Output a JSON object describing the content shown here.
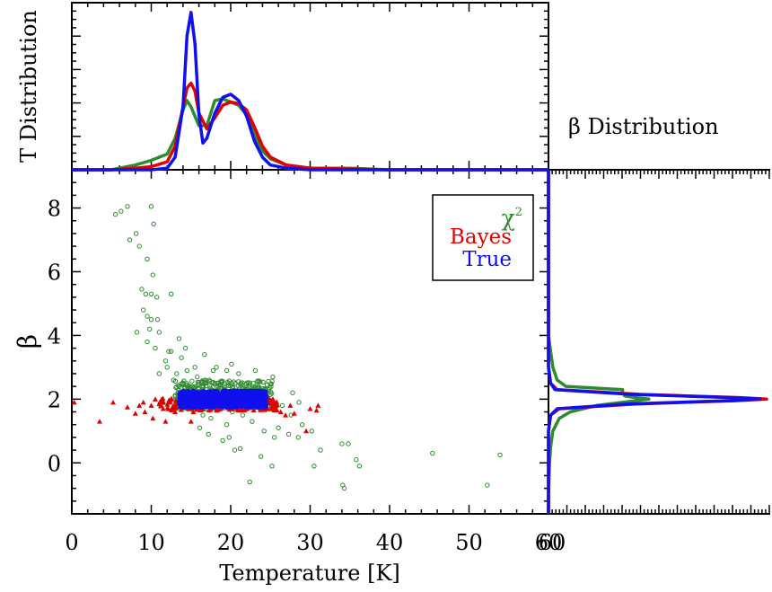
{
  "chart_data": [
    {
      "type": "line",
      "panel": "top",
      "ylabel": "T Distribution",
      "xlim": [
        0,
        60
      ],
      "ylim": [
        0,
        1.05
      ],
      "series": [
        {
          "name": "χ²",
          "color": "#2e8b2e",
          "x": [
            0,
            5,
            8,
            10,
            12,
            13,
            14,
            14.5,
            15,
            16,
            17,
            18,
            19,
            20,
            21,
            22,
            23,
            24,
            25,
            27,
            30,
            35,
            40,
            60
          ],
          "y": [
            0,
            0,
            0.03,
            0.06,
            0.1,
            0.2,
            0.38,
            0.44,
            0.4,
            0.28,
            0.28,
            0.44,
            0.45,
            0.43,
            0.41,
            0.35,
            0.22,
            0.12,
            0.07,
            0.03,
            0.01,
            0.01,
            0,
            0
          ]
        },
        {
          "name": "Bayes",
          "color": "#e00000",
          "x": [
            0,
            5,
            8,
            10,
            12,
            13,
            14,
            14.5,
            15,
            15.5,
            16,
            17,
            18,
            19,
            20,
            21,
            22,
            23,
            24,
            25,
            27,
            30,
            35,
            40,
            60
          ],
          "y": [
            0,
            0,
            0.01,
            0.02,
            0.05,
            0.15,
            0.4,
            0.52,
            0.55,
            0.5,
            0.36,
            0.26,
            0.33,
            0.41,
            0.43,
            0.42,
            0.38,
            0.27,
            0.15,
            0.08,
            0.03,
            0.01,
            0.005,
            0,
            0
          ]
        },
        {
          "name": "True",
          "color": "#1010ee",
          "x": [
            0,
            5,
            10,
            12,
            13,
            14,
            14.5,
            15,
            15.5,
            16,
            16.5,
            17,
            18,
            19,
            20,
            21,
            22,
            23,
            24,
            25,
            27,
            30,
            60
          ],
          "y": [
            0,
            0,
            0,
            0.01,
            0.08,
            0.4,
            0.85,
            1,
            0.8,
            0.35,
            0.17,
            0.2,
            0.36,
            0.46,
            0.48,
            0.44,
            0.34,
            0.18,
            0.08,
            0.03,
            0.01,
            0,
            0
          ]
        }
      ]
    },
    {
      "type": "scatter",
      "panel": "main",
      "xlabel": "Temperature [K]",
      "ylabel": "β",
      "xlim": [
        0,
        60
      ],
      "ylim": [
        -1.6,
        9.2
      ],
      "xticks": [
        0,
        10,
        20,
        30,
        40,
        50,
        60
      ],
      "yticks": [
        0,
        2,
        4,
        6,
        8
      ],
      "legend": "top-right",
      "series": [
        {
          "name": "χ²",
          "color": "#2e8b2e",
          "marker": "circle",
          "points": [
            [
              5.5,
              7.8
            ],
            [
              6.2,
              7.9
            ],
            [
              7,
              8.05
            ],
            [
              8.1,
              7.2
            ],
            [
              10,
              8.05
            ],
            [
              10.3,
              7.5
            ],
            [
              7.3,
              7
            ],
            [
              8.5,
              6.8
            ],
            [
              9.5,
              6.4
            ],
            [
              10.2,
              5.9
            ],
            [
              12.5,
              5.3
            ],
            [
              8.8,
              5.45
            ],
            [
              9.3,
              5.3
            ],
            [
              10,
              5.3
            ],
            [
              10.7,
              5.2
            ],
            [
              9,
              4.8
            ],
            [
              9.5,
              4.6
            ],
            [
              10,
              4.5
            ],
            [
              10.8,
              4.5
            ],
            [
              8.2,
              4.1
            ],
            [
              9.8,
              4.2
            ],
            [
              11,
              4.1
            ],
            [
              12.5,
              3.5
            ],
            [
              13.5,
              3.9
            ],
            [
              9.5,
              3.8
            ],
            [
              10.5,
              3.6
            ],
            [
              11.8,
              3.2
            ],
            [
              12,
              3.0
            ],
            [
              13.8,
              3.3
            ],
            [
              14.5,
              2.9
            ],
            [
              15.5,
              3.0
            ],
            [
              16.8,
              2.6
            ],
            [
              11,
              2.8
            ],
            [
              12.8,
              2.6
            ],
            [
              13.6,
              2.1
            ],
            [
              14.8,
              1.7
            ],
            [
              16.5,
              1.5
            ],
            [
              17.5,
              1.4
            ],
            [
              19.5,
              1.2
            ],
            [
              20.2,
              1.6
            ],
            [
              21.5,
              1.5
            ],
            [
              22.7,
              1.3
            ],
            [
              24.2,
              1.0
            ],
            [
              25.5,
              0.8
            ],
            [
              26,
              1.1
            ],
            [
              27.3,
              0.9
            ],
            [
              28.5,
              0.8
            ],
            [
              30.2,
              1.0
            ],
            [
              19,
              0.7
            ],
            [
              20.5,
              0.4
            ],
            [
              21.2,
              0.45
            ],
            [
              23.8,
              0.2
            ],
            [
              25.2,
              -0.1
            ],
            [
              22.4,
              -0.6
            ],
            [
              30.5,
              -0.1
            ],
            [
              31.3,
              0.4
            ],
            [
              34,
              0.6
            ],
            [
              34.8,
              0.6
            ],
            [
              36.2,
              -0.1
            ],
            [
              35.8,
              0.1
            ],
            [
              34.1,
              -0.7
            ],
            [
              34.3,
              -0.8
            ],
            [
              45.4,
              0.3
            ],
            [
              53.9,
              0.25
            ],
            [
              52.3,
              -0.7
            ],
            [
              16.5,
              2.3
            ],
            [
              17.3,
              2.6
            ],
            [
              18,
              2.5
            ],
            [
              19.2,
              2.4
            ],
            [
              20.6,
              2.5
            ],
            [
              22,
              2.5
            ],
            [
              23.5,
              2.4
            ],
            [
              24.8,
              2.3
            ],
            [
              18.2,
              3.0
            ],
            [
              19.5,
              2.9
            ],
            [
              21,
              2.8
            ],
            [
              15.2,
              2.4
            ],
            [
              14,
              2.5
            ],
            [
              26.5,
              1.8
            ],
            [
              27.6,
              1.5
            ],
            [
              29,
              1.2
            ],
            [
              22.8,
              1.8
            ],
            [
              16.1,
              1.1
            ],
            [
              18.7,
              1.7
            ],
            [
              21.8,
              2.1
            ],
            [
              17.8,
              2.9
            ],
            [
              20.1,
              3.1
            ],
            [
              15.8,
              2.7
            ],
            [
              13.2,
              2.8
            ],
            [
              12.2,
              3.5
            ],
            [
              16.7,
              3.4
            ],
            [
              14.3,
              3.6
            ],
            [
              25.3,
              2.7
            ],
            [
              23.1,
              2.9
            ],
            [
              27.8,
              2.2
            ],
            [
              28.6,
              1.9
            ],
            [
              17.2,
              0.9
            ],
            [
              19.8,
              0.8
            ]
          ]
        },
        {
          "name": "Bayes",
          "color": "#e00000",
          "marker": "triangle",
          "points": [
            [
              3.5,
              1.3
            ],
            [
              7,
              1.75
            ],
            [
              8.5,
              1.8
            ],
            [
              9,
              1.9
            ],
            [
              10,
              1.8
            ],
            [
              10.5,
              2.0
            ],
            [
              11,
              1.85
            ],
            [
              11.5,
              1.7
            ],
            [
              12.2,
              1.95
            ],
            [
              12.8,
              1.8
            ],
            [
              13.3,
              1.85
            ],
            [
              13.8,
              1.75
            ],
            [
              14.6,
              1.95
            ],
            [
              15,
              1.3
            ],
            [
              15.3,
              1.6
            ],
            [
              16.2,
              1.7
            ],
            [
              17,
              1.9
            ],
            [
              18.3,
              1.65
            ],
            [
              19,
              1.85
            ],
            [
              20.2,
              1.7
            ],
            [
              21.5,
              1.8
            ],
            [
              22.5,
              1.75
            ],
            [
              23.6,
              1.8
            ],
            [
              24.5,
              1.7
            ],
            [
              25.6,
              1.85
            ],
            [
              26.3,
              1.6
            ],
            [
              27.5,
              1.8
            ],
            [
              30,
              1.7
            ],
            [
              30.8,
              1.65
            ],
            [
              29.5,
              1.0
            ],
            [
              28,
              1.55
            ],
            [
              17.8,
              2.2
            ],
            [
              9.2,
              1.6
            ],
            [
              10.2,
              1.4
            ],
            [
              8,
              1.55
            ],
            [
              5.2,
              1.9
            ],
            [
              0.3,
              1.9
            ],
            [
              31,
              1.8
            ],
            [
              26.9,
              1.5
            ],
            [
              11.8,
              1.3
            ],
            [
              13,
              1.6
            ]
          ]
        }
      ],
      "blob": {
        "series": "True",
        "color": "#1010ee",
        "x_range": [
          13.5,
          24.5
        ],
        "y_center": 2.0,
        "y_half_height": 0.27
      }
    },
    {
      "type": "line",
      "panel": "right",
      "title": "β Distribution",
      "orientation": "horizontal",
      "series": [
        {
          "name": "χ²",
          "color": "#2e8b2e",
          "beta": [
            -1.6,
            -1,
            0,
            0.5,
            1.0,
            1.4,
            1.6,
            1.8,
            1.9,
            2.0,
            2.05,
            2.1,
            2.2,
            2.3,
            2.4,
            2.6,
            3.0,
            3.5,
            4.0,
            5,
            9.2
          ],
          "density": [
            0,
            0,
            0.005,
            0.01,
            0.02,
            0.05,
            0.1,
            0.22,
            0.34,
            0.46,
            0.4,
            0.35,
            0.34,
            0.34,
            0.08,
            0.04,
            0.02,
            0.01,
            0,
            0,
            0
          ]
        },
        {
          "name": "Bayes",
          "color": "#e00000",
          "beta": [
            -1.6,
            0,
            1.0,
            1.5,
            1.7,
            1.85,
            1.95,
            2.0,
            2.05,
            2.15,
            2.3,
            2.5,
            3.0,
            9.2
          ],
          "density": [
            0,
            0,
            0,
            0.01,
            0.05,
            0.4,
            0.85,
            1.0,
            0.88,
            0.42,
            0.04,
            0.01,
            0,
            0
          ]
        },
        {
          "name": "True",
          "color": "#1010ee",
          "beta": [
            -1.6,
            0,
            1.0,
            1.5,
            1.7,
            1.85,
            1.95,
            2.0,
            2.05,
            2.15,
            2.3,
            2.5,
            3.0,
            9.2
          ],
          "density": [
            0,
            0,
            0,
            0.01,
            0.04,
            0.36,
            0.82,
            0.97,
            0.84,
            0.38,
            0.03,
            0.01,
            0,
            0
          ]
        }
      ]
    }
  ],
  "legend": {
    "chi2": "χ",
    "chi2_sup": "2",
    "bayes": "Bayes",
    "true": "True"
  }
}
